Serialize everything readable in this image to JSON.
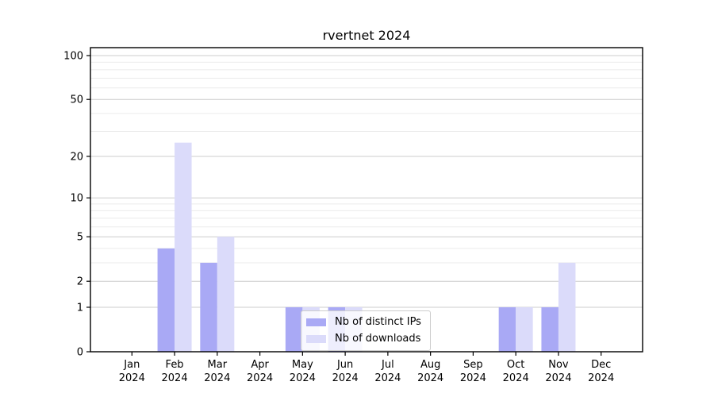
{
  "title": "rvertnet 2024",
  "year": "2024",
  "colors": {
    "distinct_ips_bar": "#a9a9f5",
    "downloads_bar": "#dbdbfa",
    "major_gridline": "#cccccc",
    "minor_gridline": "#ebebeb",
    "axis": "#000000",
    "legend_border": "#cccccc",
    "legend_background": "rgba(255,255,255,0.8)"
  },
  "legend": {
    "items": [
      {
        "label": "Nb of distinct IPs",
        "color": "#a9a9f5"
      },
      {
        "label": "Nb of downloads",
        "color": "#dbdbfa"
      }
    ],
    "position": "lower center"
  },
  "chart_data": {
    "type": "bar",
    "title": "rvertnet 2024",
    "categories": [
      "Jan 2024",
      "Feb 2024",
      "Mar 2024",
      "Apr 2024",
      "May 2024",
      "Jun 2024",
      "Jul 2024",
      "Aug 2024",
      "Sep 2024",
      "Oct 2024",
      "Nov 2024",
      "Dec 2024"
    ],
    "series": [
      {
        "name": "Nb of distinct IPs",
        "color": "#a9a9f5",
        "values": [
          0,
          4,
          3,
          0,
          1,
          1,
          0,
          0,
          0,
          1,
          1,
          0
        ]
      },
      {
        "name": "Nb of downloads",
        "color": "#dbdbfa",
        "values": [
          0,
          25,
          5,
          0,
          1,
          1,
          0,
          0,
          0,
          1,
          3,
          0
        ]
      }
    ],
    "xlabel": "",
    "ylabel": "",
    "y_scale": "log1p",
    "y_ticks": [
      0,
      1,
      2,
      5,
      10,
      20,
      50,
      100
    ],
    "y_minor_gridlines": [
      3,
      4,
      6,
      7,
      8,
      9,
      30,
      40,
      60,
      70,
      80,
      90
    ],
    "ylim": [
      0,
      113
    ],
    "grid": "horizontal",
    "legend_position": "lower center"
  }
}
